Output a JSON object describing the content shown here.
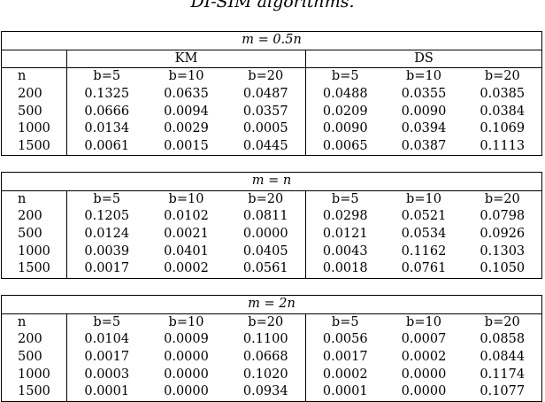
{
  "caption": "DI-SIM algorithms.",
  "col_n": "n",
  "group_labels": [
    "KM",
    "DS"
  ],
  "b_headers": [
    "b=5",
    "b=10",
    "b=20",
    "b=5",
    "b=10",
    "b=20"
  ],
  "blocks": [
    {
      "title": "m = 0.5n",
      "rows": [
        {
          "n": "200",
          "values": [
            "0.1325",
            "0.0635",
            "0.0487",
            "0.0488",
            "0.0355",
            "0.0385"
          ]
        },
        {
          "n": "500",
          "values": [
            "0.0666",
            "0.0094",
            "0.0357",
            "0.0209",
            "0.0090",
            "0.0384"
          ]
        },
        {
          "n": "1000",
          "values": [
            "0.0134",
            "0.0029",
            "0.0005",
            "0.0090",
            "0.0394",
            "0.1069"
          ]
        },
        {
          "n": "1500",
          "values": [
            "0.0061",
            "0.0015",
            "0.0445",
            "0.0065",
            "0.0387",
            "0.1113"
          ]
        }
      ]
    },
    {
      "title": "m = n",
      "rows": [
        {
          "n": "200",
          "values": [
            "0.1205",
            "0.0102",
            "0.0811",
            "0.0298",
            "0.0521",
            "0.0798"
          ]
        },
        {
          "n": "500",
          "values": [
            "0.0124",
            "0.0021",
            "0.0000",
            "0.0121",
            "0.0534",
            "0.0926"
          ]
        },
        {
          "n": "1000",
          "values": [
            "0.0039",
            "0.0401",
            "0.0405",
            "0.0043",
            "0.1162",
            "0.1303"
          ]
        },
        {
          "n": "1500",
          "values": [
            "0.0017",
            "0.0002",
            "0.0561",
            "0.0018",
            "0.0761",
            "0.1050"
          ]
        }
      ]
    },
    {
      "title": "m = 2n",
      "rows": [
        {
          "n": "200",
          "values": [
            "0.0104",
            "0.0009",
            "0.1100",
            "0.0056",
            "0.0007",
            "0.0858"
          ]
        },
        {
          "n": "500",
          "values": [
            "0.0017",
            "0.0000",
            "0.0668",
            "0.0017",
            "0.0002",
            "0.0844"
          ]
        },
        {
          "n": "1000",
          "values": [
            "0.0003",
            "0.0000",
            "0.1020",
            "0.0002",
            "0.0000",
            "0.1174"
          ]
        },
        {
          "n": "1500",
          "values": [
            "0.0001",
            "0.0000",
            "0.0934",
            "0.0001",
            "0.0000",
            "0.1077"
          ]
        }
      ]
    }
  ]
}
